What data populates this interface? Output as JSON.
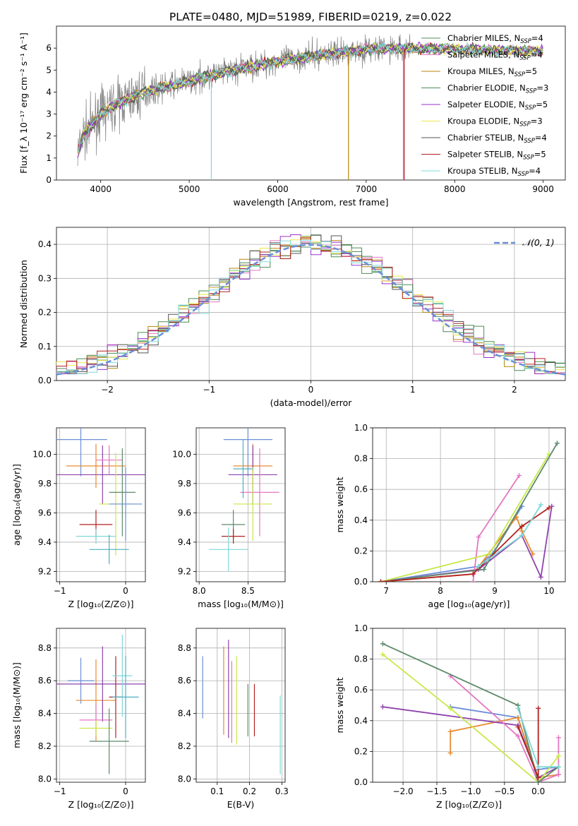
{
  "figure_title": "PLATE=0480, MJD=51989, FIBERID=0219, z=0.022",
  "colors": {
    "spec": "#808080",
    "series": [
      "#4d8c57",
      "#e377c2",
      "#b8860b",
      "#4d8c57",
      "#9932cc",
      "#e8e84a",
      "#555555",
      "#b22222",
      "#7fd8d8"
    ],
    "weights": [
      "#6a8fd8",
      "#e88a30",
      "#8e44ad",
      "#e377c2",
      "#c8e84a",
      "#5d8a6a",
      "#b22222",
      "#7fd8d8",
      "#4db0c0"
    ]
  },
  "chart_data": [
    {
      "id": "spectrum",
      "type": "line",
      "title": "PLATE=0480, MJD=51989, FIBERID=0219, z=0.022",
      "xlabel": "wavelength [Angstrom, rest frame]",
      "ylabel": "Flux [f_λ 10⁻¹⁷ erg cm⁻² s⁻¹ A⁻¹]",
      "xlim": [
        3500,
        9250
      ],
      "ylim": [
        0,
        7
      ],
      "xticks": [
        4000,
        5000,
        6000,
        7000,
        8000,
        9000
      ],
      "yticks": [
        0,
        1,
        2,
        3,
        4,
        5,
        6
      ],
      "continuum": [
        [
          3740,
          1.2
        ],
        [
          3800,
          2.0
        ],
        [
          3900,
          2.5
        ],
        [
          4000,
          3.0
        ],
        [
          4200,
          3.5
        ],
        [
          4500,
          4.0
        ],
        [
          5000,
          4.5
        ],
        [
          5500,
          5.0
        ],
        [
          6000,
          5.4
        ],
        [
          6500,
          5.7
        ],
        [
          7000,
          5.95
        ],
        [
          7500,
          6.0
        ],
        [
          8000,
          5.95
        ],
        [
          8500,
          5.9
        ],
        [
          9000,
          5.85
        ]
      ],
      "legend": [
        {
          "label": "Chabrier MILES, N",
          "sub": "SSP",
          "suffix": "=4"
        },
        {
          "label": "Salpeter MILES, N",
          "sub": "SSP",
          "suffix": "=4"
        },
        {
          "label": "Kroupa MILES, N",
          "sub": "SSP",
          "suffix": "=5"
        },
        {
          "label": "Chabrier ELODIE, N",
          "sub": "SSP",
          "suffix": "=3"
        },
        {
          "label": "Salpeter ELODIE, N",
          "sub": "SSP",
          "suffix": "=5"
        },
        {
          "label": "Kroupa ELODIE, N",
          "sub": "SSP",
          "suffix": "=3"
        },
        {
          "label": "Chabrier STELIB, N",
          "sub": "SSP",
          "suffix": "=4"
        },
        {
          "label": "Salpeter STELIB, N",
          "sub": "SSP",
          "suffix": "=5"
        },
        {
          "label": "Kroupa STELIB, N",
          "sub": "SSP",
          "suffix": "=4"
        }
      ]
    },
    {
      "id": "residuals",
      "type": "line",
      "xlabel": "(data-model)/error",
      "ylabel": "Normed distribution",
      "xlim": [
        -2.5,
        2.5
      ],
      "ylim": [
        0,
        0.45
      ],
      "xticks": [
        -2,
        -1,
        0,
        1,
        2
      ],
      "yticks": [
        0.0,
        0.1,
        0.2,
        0.3,
        0.4
      ],
      "legend": "𝒩(0, 1)"
    },
    {
      "id": "age_vs_Z",
      "type": "scatter",
      "xlabel": "Z [log₁₀(Z/Z⊙)]",
      "ylabel": "age  [log₁₀(age/yr)]",
      "xlim": [
        -1.05,
        0.3
      ],
      "ylim": [
        9.13,
        10.18
      ],
      "xticks": [
        -1,
        0
      ],
      "yticks": [
        9.2,
        9.4,
        9.6,
        9.8,
        10.0
      ],
      "points": [
        {
          "x": -0.68,
          "y": 10.1,
          "xerr": 0.4,
          "yerr": 0.25
        },
        {
          "x": -0.45,
          "y": 9.92,
          "xerr": 0.45,
          "yerr": 0.15
        },
        {
          "x": -0.35,
          "y": 9.86,
          "xerr": 0.95,
          "yerr": 0.2
        },
        {
          "x": -0.25,
          "y": 9.96,
          "xerr": 0.2,
          "yerr": 0.1
        },
        {
          "x": -0.15,
          "y": 9.66,
          "xerr": 0.25,
          "yerr": 0.35
        },
        {
          "x": -0.05,
          "y": 9.74,
          "xerr": 0.2,
          "yerr": 0.3
        },
        {
          "x": -0.45,
          "y": 9.52,
          "xerr": 0.25,
          "yerr": 0.1
        },
        {
          "x": -0.45,
          "y": 9.44,
          "xerr": 0.3,
          "yerr": 0.05
        },
        {
          "x": -0.25,
          "y": 9.35,
          "xerr": 0.3,
          "yerr": 0.1
        },
        {
          "x": 0.0,
          "y": 9.66,
          "xerr": 0.25,
          "yerr": 0.25
        }
      ]
    },
    {
      "id": "age_vs_mass",
      "type": "scatter",
      "xlabel": "mass [log₁₀(M/M⊙)]",
      "ylabel": "",
      "xlim": [
        7.97,
        8.88
      ],
      "ylim": [
        9.13,
        10.18
      ],
      "xticks": [
        8.0,
        8.5
      ],
      "yticks": [
        9.2,
        9.4,
        9.6,
        9.8,
        10.0
      ],
      "points": [
        {
          "x": 8.5,
          "y": 10.1,
          "xerr": 0.25,
          "yerr": 0.25
        },
        {
          "x": 8.55,
          "y": 9.92,
          "xerr": 0.2,
          "yerr": 0.15
        },
        {
          "x": 8.55,
          "y": 9.86,
          "xerr": 0.25,
          "yerr": 0.2
        },
        {
          "x": 8.62,
          "y": 9.74,
          "xerr": 0.2,
          "yerr": 0.3
        },
        {
          "x": 8.55,
          "y": 9.66,
          "xerr": 0.2,
          "yerr": 0.25
        },
        {
          "x": 8.35,
          "y": 9.52,
          "xerr": 0.12,
          "yerr": 0.1
        },
        {
          "x": 8.35,
          "y": 9.44,
          "xerr": 0.12,
          "yerr": 0.05
        },
        {
          "x": 8.3,
          "y": 9.35,
          "xerr": 0.2,
          "yerr": 0.15
        },
        {
          "x": 8.45,
          "y": 9.9,
          "xerr": 0.1,
          "yerr": 0.2
        }
      ]
    },
    {
      "id": "weight_vs_age",
      "type": "line",
      "xlabel": "age  [log₁₀(age/yr)]",
      "ylabel": "mass weight",
      "xlim": [
        6.75,
        10.3
      ],
      "ylim": [
        0,
        1.0
      ],
      "xticks": [
        7,
        8,
        9,
        10
      ],
      "yticks": [
        0.0,
        0.2,
        0.4,
        0.6,
        0.8,
        1.0
      ],
      "series": [
        {
          "x": [
            6.9,
            8.7,
            9.0,
            9.5
          ],
          "y": [
            0.0,
            0.1,
            0.2,
            0.49
          ]
        },
        {
          "x": [
            6.9,
            8.6,
            9.4,
            9.5,
            9.7
          ],
          "y": [
            0.0,
            0.05,
            0.42,
            0.33,
            0.18
          ]
        },
        {
          "x": [
            6.9,
            8.7,
            9.5,
            9.85,
            10.05
          ],
          "y": [
            0.0,
            0.08,
            0.3,
            0.03,
            0.49
          ]
        },
        {
          "x": [
            8.6,
            8.7,
            9.45
          ],
          "y": [
            0.0,
            0.29,
            0.69
          ]
        },
        {
          "x": [
            6.9,
            8.9,
            10.0
          ],
          "y": [
            0.0,
            0.18,
            0.83
          ]
        },
        {
          "x": [
            6.9,
            8.8,
            10.15
          ],
          "y": [
            0.0,
            0.08,
            0.9
          ]
        },
        {
          "x": [
            6.9,
            8.6,
            9.5,
            10.0
          ],
          "y": [
            0.0,
            0.05,
            0.36,
            0.48
          ]
        },
        {
          "x": [
            8.7,
            9.5,
            9.85
          ],
          "y": [
            0.1,
            0.3,
            0.5
          ]
        }
      ]
    },
    {
      "id": "mass_vs_Z",
      "type": "scatter",
      "xlabel": "Z [log₁₀(Z/Z⊙)]",
      "ylabel": "mass [log₁₀(M/M⊙)]",
      "xlim": [
        -1.05,
        0.3
      ],
      "ylim": [
        7.98,
        8.92
      ],
      "xticks": [
        -1,
        0
      ],
      "yticks": [
        8.0,
        8.2,
        8.4,
        8.6,
        8.8
      ],
      "points": [
        {
          "x": -0.68,
          "y": 8.6,
          "xerr": 0.2,
          "yerr": 0.14
        },
        {
          "x": -0.45,
          "y": 8.48,
          "xerr": 0.3,
          "yerr": 0.25
        },
        {
          "x": -0.35,
          "y": 8.58,
          "xerr": 0.95,
          "yerr": 0.23
        },
        {
          "x": -0.45,
          "y": 8.36,
          "xerr": 0.25,
          "yerr": 0.1
        },
        {
          "x": -0.45,
          "y": 8.31,
          "xerr": 0.25,
          "yerr": 0.05
        },
        {
          "x": -0.25,
          "y": 8.23,
          "xerr": 0.3,
          "yerr": 0.2
        },
        {
          "x": -0.15,
          "y": 8.5,
          "xerr": 0.1,
          "yerr": 0.25
        },
        {
          "x": -0.05,
          "y": 8.63,
          "xerr": 0.15,
          "yerr": 0.25
        },
        {
          "x": 0.0,
          "y": 8.5,
          "xerr": 0.2,
          "yerr": 0.25
        }
      ]
    },
    {
      "id": "mass_vs_ebv",
      "type": "scatter",
      "xlabel": "E(B-V)",
      "ylabel": "",
      "xlim": [
        0.035,
        0.31
      ],
      "ylim": [
        7.98,
        8.92
      ],
      "xticks": [
        0.1,
        0.2,
        0.3
      ],
      "yticks": [
        8.0,
        8.2,
        8.4,
        8.6,
        8.8
      ],
      "points": [
        {
          "x": 0.055,
          "y": 8.56,
          "yerr": 0.19
        },
        {
          "x": 0.12,
          "y": 8.54,
          "yerr": 0.27
        },
        {
          "x": 0.135,
          "y": 8.55,
          "yerr": 0.3
        },
        {
          "x": 0.145,
          "y": 8.47,
          "yerr": 0.25
        },
        {
          "x": 0.16,
          "y": 8.48,
          "yerr": 0.27
        },
        {
          "x": 0.195,
          "y": 8.42,
          "yerr": 0.16
        },
        {
          "x": 0.215,
          "y": 8.42,
          "yerr": 0.16
        },
        {
          "x": 0.295,
          "y": 8.27,
          "yerr": 0.24
        }
      ]
    },
    {
      "id": "weight_vs_Z",
      "type": "line",
      "xlabel": "Z [log₁₀(Z/Z⊙)]",
      "ylabel": "mass weight",
      "xlim": [
        -2.45,
        0.4
      ],
      "ylim": [
        0,
        1.0
      ],
      "xticks": [
        -2.0,
        -1.5,
        -1.0,
        -0.5,
        0.0
      ],
      "yticks": [
        0.0,
        0.2,
        0.4,
        0.6,
        0.8,
        1.0
      ],
      "series": [
        {
          "x": [
            -1.3,
            -0.3,
            -0.05,
            0.3
          ],
          "y": [
            0.49,
            0.42,
            0.08,
            0.1
          ]
        },
        {
          "x": [
            -1.3,
            -1.3,
            -0.3,
            0.0,
            0.3
          ],
          "y": [
            0.19,
            0.33,
            0.42,
            0.03,
            0.05
          ]
        },
        {
          "x": [
            -2.3,
            -0.3,
            0.0,
            0.3
          ],
          "y": [
            0.49,
            0.37,
            0.03,
            0.1
          ]
        },
        {
          "x": [
            -1.3,
            -0.3,
            0.0,
            0.3,
            0.3
          ],
          "y": [
            0.69,
            0.3,
            0.0,
            0.05,
            0.29
          ]
        },
        {
          "x": [
            -2.3,
            -1.3,
            0.0,
            0.3
          ],
          "y": [
            0.83,
            0.48,
            0.0,
            0.17
          ]
        },
        {
          "x": [
            -2.3,
            -0.3,
            0.0,
            0.3
          ],
          "y": [
            0.9,
            0.5,
            0.0,
            0.1
          ]
        },
        {
          "x": [
            -0.3,
            0.0,
            0.0
          ],
          "y": [
            0.36,
            0.03,
            0.48
          ]
        },
        {
          "x": [
            -0.3,
            0.0,
            0.3
          ],
          "y": [
            0.48,
            0.1,
            0.1
          ]
        }
      ]
    }
  ]
}
